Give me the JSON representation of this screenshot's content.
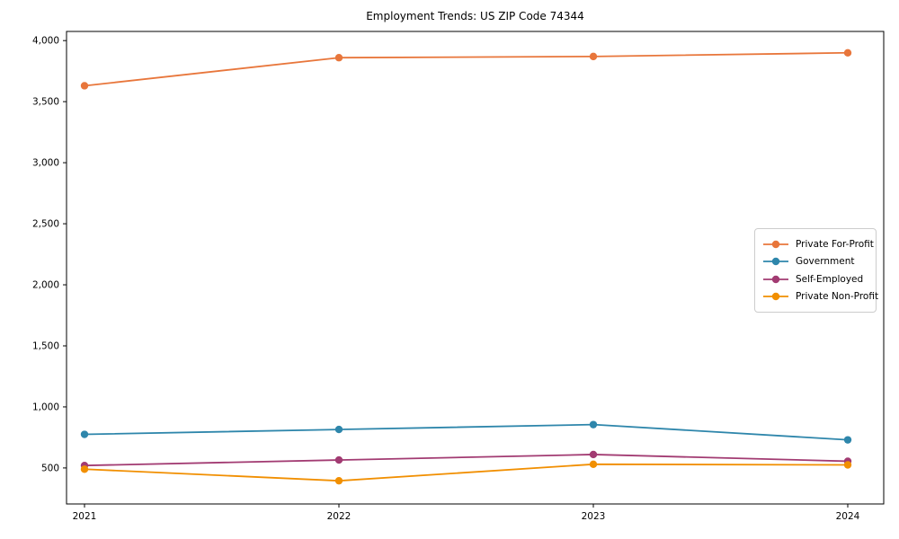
{
  "title": "Employment Trends: US ZIP Code 74344",
  "chart_data": {
    "type": "line",
    "x": [
      "2021",
      "2022",
      "2023",
      "2024"
    ],
    "series": [
      {
        "name": "Private For-Profit",
        "color": "#E8763B",
        "values": [
          3630,
          3860,
          3870,
          3900
        ]
      },
      {
        "name": "Government",
        "color": "#2E86AB",
        "values": [
          775,
          815,
          855,
          730
        ]
      },
      {
        "name": "Self-Employed",
        "color": "#A23B72",
        "values": [
          520,
          565,
          610,
          555
        ]
      },
      {
        "name": "Private Non-Profit",
        "color": "#F18F01",
        "values": [
          490,
          395,
          530,
          525
        ]
      }
    ],
    "yticks": [
      {
        "value": 500,
        "label": "500"
      },
      {
        "value": 1000,
        "label": "1,000"
      },
      {
        "value": 1500,
        "label": "1,500"
      },
      {
        "value": 2000,
        "label": "2,000"
      },
      {
        "value": 2500,
        "label": "2,500"
      },
      {
        "value": 3000,
        "label": "3,000"
      },
      {
        "value": 3500,
        "label": "3,500"
      },
      {
        "value": 4000,
        "label": "4,000"
      }
    ],
    "ylim": [
      205,
      4075
    ],
    "grid": false,
    "marker": "circle",
    "legend_position": "center right",
    "axis_color": "#000000"
  }
}
